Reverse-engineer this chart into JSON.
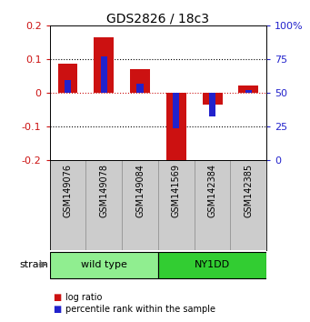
{
  "title": "GDS2826 / 18c3",
  "samples": [
    "GSM149076",
    "GSM149078",
    "GSM149084",
    "GSM141569",
    "GSM142384",
    "GSM142385"
  ],
  "log_ratio": [
    0.088,
    0.165,
    0.072,
    -0.215,
    -0.033,
    0.022
  ],
  "percentile_rank": [
    60,
    77,
    57,
    24,
    33,
    52
  ],
  "groups": [
    {
      "label": "wild type",
      "indices": [
        0,
        1,
        2
      ],
      "color": "#90ee90"
    },
    {
      "label": "NY1DD",
      "indices": [
        3,
        4,
        5
      ],
      "color": "#32cd32"
    }
  ],
  "group_label": "strain",
  "ylim_left": [
    -0.2,
    0.2
  ],
  "ylim_right": [
    0,
    100
  ],
  "bar_color_red": "#cc1111",
  "bar_color_blue": "#2222cc",
  "hline_zero_color": "#cc1111",
  "hline_01_color": "black",
  "left_tick_color": "#cc1111",
  "right_tick_color": "#2222cc",
  "bar_width": 0.55,
  "blue_bar_width": 0.18,
  "background_color": "white",
  "plot_bg_color": "white",
  "label_bg_color": "#cccccc",
  "label_divider_color": "#888888"
}
